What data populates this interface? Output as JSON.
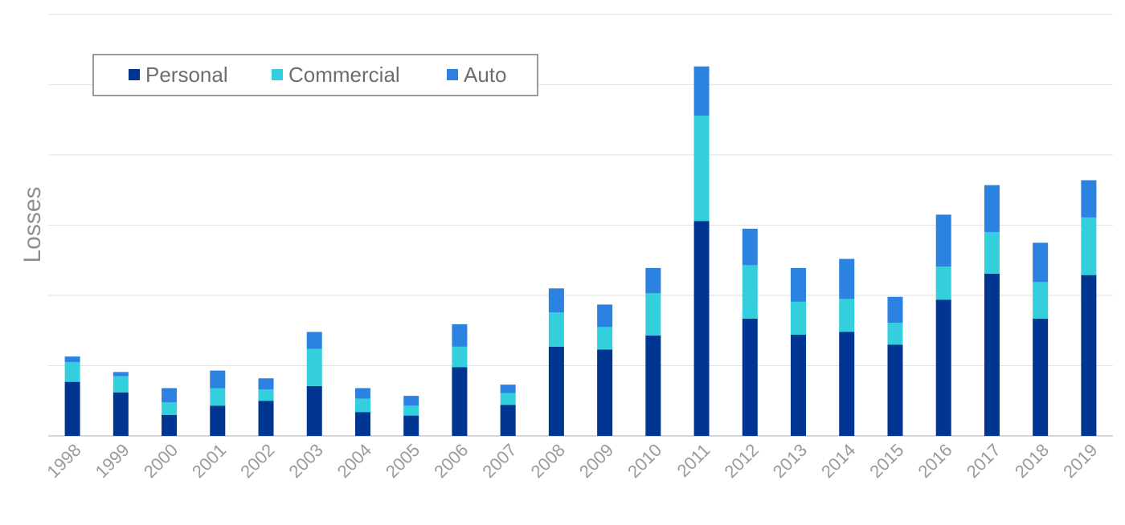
{
  "chart_data": {
    "type": "bar",
    "stacked": true,
    "title": "",
    "xlabel": "",
    "ylabel": "Losses",
    "ylim": [
      0,
      6
    ],
    "grid": true,
    "legend_position": "top-left",
    "categories": [
      "1998",
      "1999",
      "2000",
      "2001",
      "2002",
      "2003",
      "2004",
      "2005",
      "2006",
      "2007",
      "2008",
      "2009",
      "2010",
      "2011",
      "2012",
      "2013",
      "2014",
      "2015",
      "2016",
      "2017",
      "2018",
      "2019"
    ],
    "series": [
      {
        "name": "Personal",
        "color": "#003591",
        "values": [
          0.77,
          0.62,
          0.3,
          0.43,
          0.5,
          0.71,
          0.34,
          0.29,
          0.98,
          0.44,
          1.27,
          1.23,
          1.43,
          3.06,
          1.67,
          1.44,
          1.48,
          1.3,
          1.94,
          2.31,
          1.67,
          2.29
        ]
      },
      {
        "name": "Commercial",
        "color": "#33cfdc",
        "values": [
          0.28,
          0.23,
          0.18,
          0.25,
          0.16,
          0.53,
          0.19,
          0.14,
          0.29,
          0.17,
          0.49,
          0.32,
          0.6,
          1.5,
          0.76,
          0.47,
          0.47,
          0.31,
          0.47,
          0.59,
          0.52,
          0.82
        ]
      },
      {
        "name": "Auto",
        "color": "#2b82e0",
        "values": [
          0.08,
          0.06,
          0.2,
          0.25,
          0.16,
          0.24,
          0.15,
          0.14,
          0.32,
          0.12,
          0.34,
          0.32,
          0.36,
          0.7,
          0.52,
          0.48,
          0.57,
          0.37,
          0.74,
          0.67,
          0.56,
          0.53
        ]
      }
    ]
  }
}
